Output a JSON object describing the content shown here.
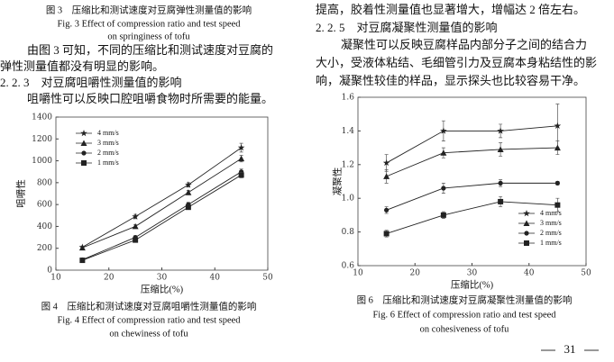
{
  "left": {
    "fig3_caption": [
      "图 3　压缩比和测试速度对豆腐弹性测量值的影响",
      "Fig. 3 Effect of compression ratio and test speed",
      "on springiness of tofu"
    ],
    "paragraph1": [
      "由图 3 可知，不同的压缩比和测试速度对豆腐的",
      "弹性测量值都没有明显的影响。"
    ],
    "heading": "2. 2. 3　对豆腐咀嚼性测量值的影响",
    "paragraph2": [
      "咀嚼性可以反映口腔咀嚼食物时所需要的能量。"
    ],
    "fig4_caption": [
      "图 4　压缩比和测试速度对豆腐咀嚼性测量值的影响",
      "Fig. 4 Effect of compression ratio and test speed",
      "on chewiness of tofu"
    ]
  },
  "right": {
    "paragraph1": [
      "提高，胶着性测量值也显著增大，增幅达 2 倍左右。"
    ],
    "heading": "2. 2. 5　对豆腐凝聚性测量值的影响",
    "paragraph2": [
      "凝聚性可以反映豆腐样品内部分子之间的结合力",
      "大小，受液体粘结、毛细管引力及豆腐本身粘结性的影",
      "响，凝聚性较佳的样品，显示探头也比较容易干净。"
    ],
    "fig6_caption": [
      "图 6　压缩比和测试速度对豆腐凝聚性测量值的影响",
      "Fig. 6 Effect of compression ratio and test speed",
      "on cohesiveness of tofu"
    ]
  },
  "page_number": "31",
  "chart_data": [
    {
      "type": "line",
      "y_label": "咀嚼性",
      "x_label": "压缩比(%)",
      "x": [
        15,
        25,
        35,
        45
      ],
      "xlim": [
        10,
        50
      ],
      "xticks": [
        10,
        20,
        30,
        40,
        50
      ],
      "ylim": [
        0,
        1400
      ],
      "yticks": [
        0,
        200,
        400,
        600,
        800,
        1000,
        1200,
        1400
      ],
      "legend": "upper left",
      "series": [
        {
          "name": "4 mm/s",
          "color": "#222222",
          "marker": "star",
          "values": [
            210,
            490,
            780,
            1120
          ],
          "errors": [
            10,
            20,
            20,
            40
          ]
        },
        {
          "name": "3 mm/s",
          "color": "#222222",
          "marker": "triangle",
          "values": [
            205,
            400,
            710,
            1020
          ],
          "errors": [
            10,
            15,
            20,
            30
          ]
        },
        {
          "name": "2 mm/s",
          "color": "#222222",
          "marker": "circle",
          "values": [
            95,
            300,
            600,
            900
          ],
          "errors": [
            10,
            15,
            20,
            25
          ]
        },
        {
          "name": "1 mm/s",
          "color": "#222222",
          "marker": "square",
          "values": [
            90,
            275,
            575,
            870
          ],
          "errors": [
            10,
            15,
            20,
            25
          ]
        }
      ]
    },
    {
      "type": "line",
      "y_label": "凝聚性",
      "x_label": "压缩比(%)",
      "x": [
        15,
        25,
        35,
        45
      ],
      "xlim": [
        10,
        50
      ],
      "xticks": [
        10,
        20,
        30,
        40,
        50
      ],
      "ylim": [
        0.6,
        1.6
      ],
      "yticks": [
        0.6,
        0.8,
        {
          "value": 1,
          "label": "1.0"
        },
        1.2,
        1.4,
        1.6
      ],
      "legend": "lower right",
      "series": [
        {
          "name": "4 mm/s",
          "color": "#222222",
          "marker": "star",
          "values": [
            1.21,
            1.4,
            1.4,
            1.43
          ],
          "errors": [
            0.05,
            0.06,
            0.04,
            0.13
          ]
        },
        {
          "name": "3 mm/s",
          "color": "#222222",
          "marker": "triangle",
          "values": [
            1.13,
            1.27,
            1.29,
            1.3
          ],
          "errors": [
            0.04,
            0.03,
            0.04,
            0.04
          ]
        },
        {
          "name": "2 mm/s",
          "color": "#222222",
          "marker": "circle",
          "values": [
            0.93,
            1.06,
            1.09,
            1.09
          ],
          "errors": [
            0.02,
            0.03,
            0.02,
            0.01
          ]
        },
        {
          "name": "1 mm/s",
          "color": "#222222",
          "marker": "square",
          "values": [
            0.79,
            0.9,
            0.98,
            0.96
          ],
          "errors": [
            0.02,
            0.02,
            0.03,
            0.04
          ]
        }
      ]
    }
  ]
}
